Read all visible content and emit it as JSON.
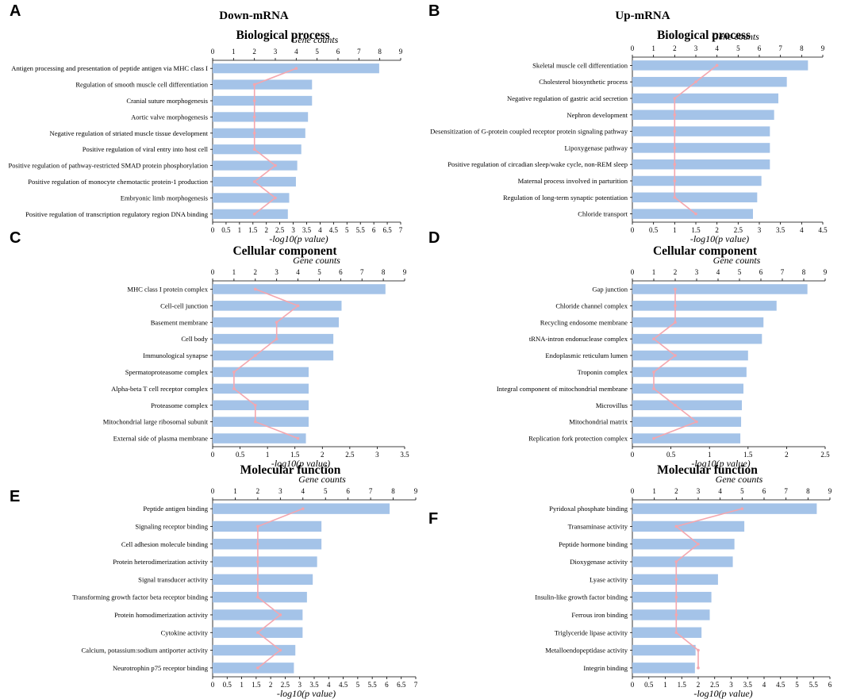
{
  "columns": [
    "Down-mRNA",
    "Up-mRNA"
  ],
  "colors": {
    "bar": "#a4c3e8",
    "line": "#f4a6ae"
  },
  "chart_data": [
    {
      "panel": "A",
      "type": "bar",
      "title": "Biological process",
      "xlabel": "-log10(p value)",
      "x2label": "Gene counts",
      "xlim": [
        0,
        7
      ],
      "xticks": [
        "0",
        "0.5",
        "1",
        "1.5",
        "2",
        "2.5",
        "3",
        "3.5",
        "4",
        "4.5",
        "5",
        "5.5",
        "6",
        "6.5",
        "7"
      ],
      "x2lim": [
        0,
        9
      ],
      "x2ticks": [
        "0",
        "1",
        "2",
        "3",
        "4",
        "5",
        "6",
        "7",
        "8",
        "9"
      ],
      "categories": [
        "Antigen processing and presentation of peptide antigen via MHC class I",
        "Regulation of smooth muscle cell differentiation",
        "Cranial suture morphogenesis",
        "Aortic valve morphogenesis",
        "Negative regulation of striated muscle tissue development",
        "Positive regulation of viral entry into host cell",
        "Positive regulation of pathway-restricted SMAD protein phosphorylation",
        "Positive regulation of monocyte chemotactic protein-1 production",
        "Embryonic limb morphogenesis",
        "Positive regulation of transcription regulatory region DNA binding"
      ],
      "values": [
        6.2,
        3.7,
        3.7,
        3.55,
        3.45,
        3.3,
        3.15,
        3.1,
        2.85,
        2.8
      ],
      "counts": [
        4,
        2,
        2,
        2,
        2,
        2,
        3,
        2,
        3,
        2
      ]
    },
    {
      "panel": "B",
      "type": "bar",
      "title": "Biological process",
      "xlabel": "-log10(p value)",
      "x2label": "Gene counts",
      "xlim": [
        0,
        4.5
      ],
      "xticks": [
        "0",
        "0.5",
        "1",
        "1.5",
        "2",
        "2.5",
        "3",
        "3.5",
        "4",
        "4.5"
      ],
      "x2lim": [
        0,
        9
      ],
      "x2ticks": [
        "0",
        "1",
        "2",
        "3",
        "4",
        "5",
        "6",
        "7",
        "8",
        "9"
      ],
      "categories": [
        "Skeletal muscle cell differentiation",
        "Cholesterol biosynthetic process",
        "Negative regulation of gastric acid secretion",
        "Nephron development",
        "Desensitization of G-protein coupled receptor protein signaling pathway",
        "Lipoxygenase pathway",
        "Positive regulation of circadian sleep/wake cycle, non-REM sleep",
        "Maternal process involved in parturition",
        "Regulation of long-term synaptic potentiation",
        "Chloride transport"
      ],
      "values": [
        4.15,
        3.65,
        3.45,
        3.35,
        3.25,
        3.25,
        3.25,
        3.05,
        2.95,
        2.85
      ],
      "counts": [
        4,
        3,
        2,
        2,
        2,
        2,
        2,
        2,
        2,
        3
      ]
    },
    {
      "panel": "C",
      "type": "bar",
      "title": "Cellular component",
      "xlabel": "-log10(p value)",
      "x2label": "Gene counts",
      "xlim": [
        0,
        3.5
      ],
      "xticks": [
        "0",
        "0.5",
        "1",
        "1.5",
        "2",
        "2.5",
        "3",
        "3.5"
      ],
      "x2lim": [
        0,
        9
      ],
      "x2ticks": [
        "0",
        "1",
        "2",
        "3",
        "4",
        "5",
        "6",
        "7",
        "8",
        "9"
      ],
      "categories": [
        "MHC class I protein complex",
        "Cell-cell junction",
        "Basement membrane",
        "Cell body",
        "Immunological synapse",
        "Spermatoproteasome complex",
        "Alpha-beta T cell receptor complex",
        "Proteasome complex",
        "Mitochondrial large ribosomal subunit",
        "External side of plasma membrane"
      ],
      "values": [
        3.15,
        2.35,
        2.3,
        2.2,
        2.2,
        1.75,
        1.75,
        1.75,
        1.75,
        1.7
      ],
      "counts": [
        2,
        4,
        3,
        3,
        2,
        1,
        1,
        2,
        2,
        4
      ]
    },
    {
      "panel": "D",
      "type": "bar",
      "title": "Cellular component",
      "xlabel": "-log10(p value)",
      "x2label": "Gene counts",
      "xlim": [
        0,
        2.5
      ],
      "xticks": [
        "0",
        "0.5",
        "1",
        "1.5",
        "2",
        "2.5"
      ],
      "x2lim": [
        0,
        9
      ],
      "x2ticks": [
        "0",
        "1",
        "2",
        "3",
        "4",
        "5",
        "6",
        "7",
        "8",
        "9"
      ],
      "categories": [
        "Gap junction",
        "Chloride channel complex",
        "Recycling endosome membrane",
        "tRNA-intron endonuclease complex",
        "Endoplasmic reticulum lumen",
        "Troponin complex",
        "Integral component of mitochondrial membrane",
        "Microvillus",
        "Mitochondrial matrix",
        "Replication fork protection complex"
      ],
      "values": [
        2.27,
        1.87,
        1.7,
        1.68,
        1.5,
        1.48,
        1.44,
        1.42,
        1.41,
        1.4
      ],
      "counts": [
        2,
        2,
        2,
        1,
        2,
        1,
        1,
        2,
        3,
        1
      ]
    },
    {
      "panel": "E",
      "type": "bar",
      "title": "Molecular function",
      "xlabel": "-log10(p value)",
      "x2label": "Gene counts",
      "xlim": [
        0,
        7
      ],
      "xticks": [
        "0",
        "0.5",
        "1",
        "1.5",
        "2",
        "2.5",
        "3",
        "3.5",
        "4",
        "4.5",
        "5",
        "5.5",
        "6",
        "6.5",
        "7"
      ],
      "x2lim": [
        0,
        9
      ],
      "x2ticks": [
        "0",
        "1",
        "2",
        "3",
        "4",
        "5",
        "6",
        "7",
        "8",
        "9"
      ],
      "categories": [
        "Peptide antigen binding",
        "Signaling receptor binding",
        "Cell adhesion molecule binding",
        "Protein heterodimerization activity",
        "Signal transducer activity",
        "Transforming growth factor beta receptor binding",
        "Protein homodimerization activity",
        "Cytokine activity",
        "Calcium, potassium:sodium antiporter activity",
        "Neurotrophin p75 receptor binding"
      ],
      "values": [
        6.1,
        3.75,
        3.75,
        3.6,
        3.45,
        3.25,
        3.1,
        3.1,
        2.85,
        2.8
      ],
      "counts": [
        4,
        2,
        2,
        2,
        2,
        2,
        3,
        2,
        3,
        2
      ]
    },
    {
      "panel": "F",
      "type": "bar",
      "title": "Molecular function",
      "xlabel": "-log10(p value)",
      "x2label": "Gene counts",
      "xlim": [
        0,
        6
      ],
      "xticks": [
        "0",
        "0.5",
        "1",
        "1.5",
        "2",
        "2.5",
        "3",
        "3.5",
        "4",
        "4.5",
        "5",
        "5.5",
        "6"
      ],
      "x2lim": [
        0,
        9
      ],
      "x2ticks": [
        "0",
        "1",
        "2",
        "3",
        "4",
        "5",
        "6",
        "7",
        "8",
        "9"
      ],
      "categories": [
        "Pyridoxal phosphate binding",
        "Transaminase activity",
        "Peptide hormone binding",
        "Dioxygenase activity",
        "Lyase activity",
        "Insulin-like growth factor binding",
        "Ferrous iron binding",
        "Triglyceride lipase activity",
        "Metalloendopeptidase activity",
        "Integrin binding"
      ],
      "values": [
        5.6,
        3.4,
        3.1,
        3.05,
        2.6,
        2.4,
        2.35,
        2.1,
        1.92,
        1.9
      ],
      "counts": [
        5,
        2,
        3,
        2,
        2,
        2,
        2,
        2,
        3,
        3
      ]
    }
  ]
}
